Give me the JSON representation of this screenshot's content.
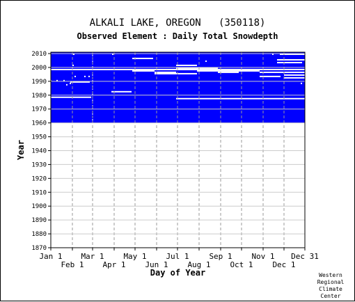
{
  "title": "ALKALI LAKE, OREGON   (350118)",
  "subtitle": "Observed Element : Daily Total Snowdepth",
  "credit": "Western\nRegional\nClimate\nCenter",
  "colors": {
    "data": "#0000ff",
    "background": "#ffffff",
    "grid": "#999999",
    "axis": "#000000"
  },
  "chart_data": {
    "type": "heatmap",
    "xlabel": "Day of Year",
    "ylabel": "Year",
    "xlim": [
      1,
      366
    ],
    "ylim": [
      1870,
      2011
    ],
    "grid": true,
    "x_ticks_upper": [
      {
        "label": "Jan 1",
        "day": 1
      },
      {
        "label": "Mar 1",
        "day": 61
      },
      {
        "label": "May 1",
        "day": 122
      },
      {
        "label": "Jul 1",
        "day": 183
      },
      {
        "label": "Sep 1",
        "day": 245
      },
      {
        "label": "Nov 1",
        "day": 306
      },
      {
        "label": "Dec 31",
        "day": 366
      }
    ],
    "x_ticks_lower": [
      {
        "label": "Feb 1",
        "day": 32
      },
      {
        "label": "Apr 1",
        "day": 92
      },
      {
        "label": "Jun 1",
        "day": 153
      },
      {
        "label": "Aug 1",
        "day": 214
      },
      {
        "label": "Oct 1",
        "day": 275
      },
      {
        "label": "Dec 1",
        "day": 336
      }
    ],
    "y_ticks": [
      1870,
      1880,
      1890,
      1900,
      1910,
      1920,
      1930,
      1940,
      1950,
      1960,
      1970,
      1980,
      1990,
      2000,
      2010
    ],
    "data_coverage": {
      "years": [
        1960,
        2010
      ],
      "days": [
        1,
        366
      ]
    },
    "missing_gaps": [
      {
        "year": 2009,
        "day_start": 330,
        "day_end": 366
      },
      {
        "year": 2006,
        "day_start": 118,
        "day_end": 148
      },
      {
        "year": 2005,
        "day_start": 326,
        "day_end": 366
      },
      {
        "year": 2003,
        "day_start": 326,
        "day_end": 362
      },
      {
        "year": 2001,
        "day_start": 181,
        "day_end": 211
      },
      {
        "year": 1999,
        "day_start": 181,
        "day_end": 211
      },
      {
        "year": 1999,
        "day_start": 211,
        "day_end": 241
      },
      {
        "year": 1998,
        "day_start": 1,
        "day_end": 366
      },
      {
        "year": 1997,
        "day_start": 118,
        "day_end": 150
      },
      {
        "year": 1997,
        "day_start": 211,
        "day_end": 241
      },
      {
        "year": 1997,
        "day_start": 241,
        "day_end": 271
      },
      {
        "year": 1997,
        "day_start": 271,
        "day_end": 301
      },
      {
        "year": 1996,
        "day_start": 150,
        "day_end": 181
      },
      {
        "year": 1996,
        "day_start": 241,
        "day_end": 271
      },
      {
        "year": 1996,
        "day_start": 301,
        "day_end": 366
      },
      {
        "year": 1995,
        "day_start": 150,
        "day_end": 181
      },
      {
        "year": 1995,
        "day_start": 181,
        "day_end": 211
      },
      {
        "year": 1994,
        "day_start": 336,
        "day_end": 366
      },
      {
        "year": 1993,
        "day_start": 301,
        "day_end": 331
      },
      {
        "year": 1992,
        "day_start": 336,
        "day_end": 366
      },
      {
        "year": 1989,
        "day_start": 29,
        "day_end": 57
      },
      {
        "year": 1982,
        "day_start": 88,
        "day_end": 117
      },
      {
        "year": 1978,
        "day_start": 1,
        "day_end": 59
      },
      {
        "year": 1977,
        "day_start": 181,
        "day_end": 366
      }
    ],
    "missing_points": [
      {
        "year": 2009,
        "day": 34
      },
      {
        "year": 2009,
        "day": 90
      },
      {
        "year": 2009,
        "day": 320
      },
      {
        "year": 2004,
        "day": 224
      },
      {
        "year": 2001,
        "day": 33
      },
      {
        "year": 1993,
        "day": 36
      },
      {
        "year": 1993,
        "day": 50
      },
      {
        "year": 1993,
        "day": 56
      },
      {
        "year": 1990,
        "day": 1
      },
      {
        "year": 1990,
        "day": 10
      },
      {
        "year": 1990,
        "day": 20
      },
      {
        "year": 1988,
        "day": 29
      },
      {
        "year": 1987,
        "day": 24
      },
      {
        "year": 1988,
        "day": 361
      }
    ],
    "missing_columns": [
      {
        "day": 61,
        "year_start": 1960,
        "year_end": 2010
      }
    ]
  }
}
